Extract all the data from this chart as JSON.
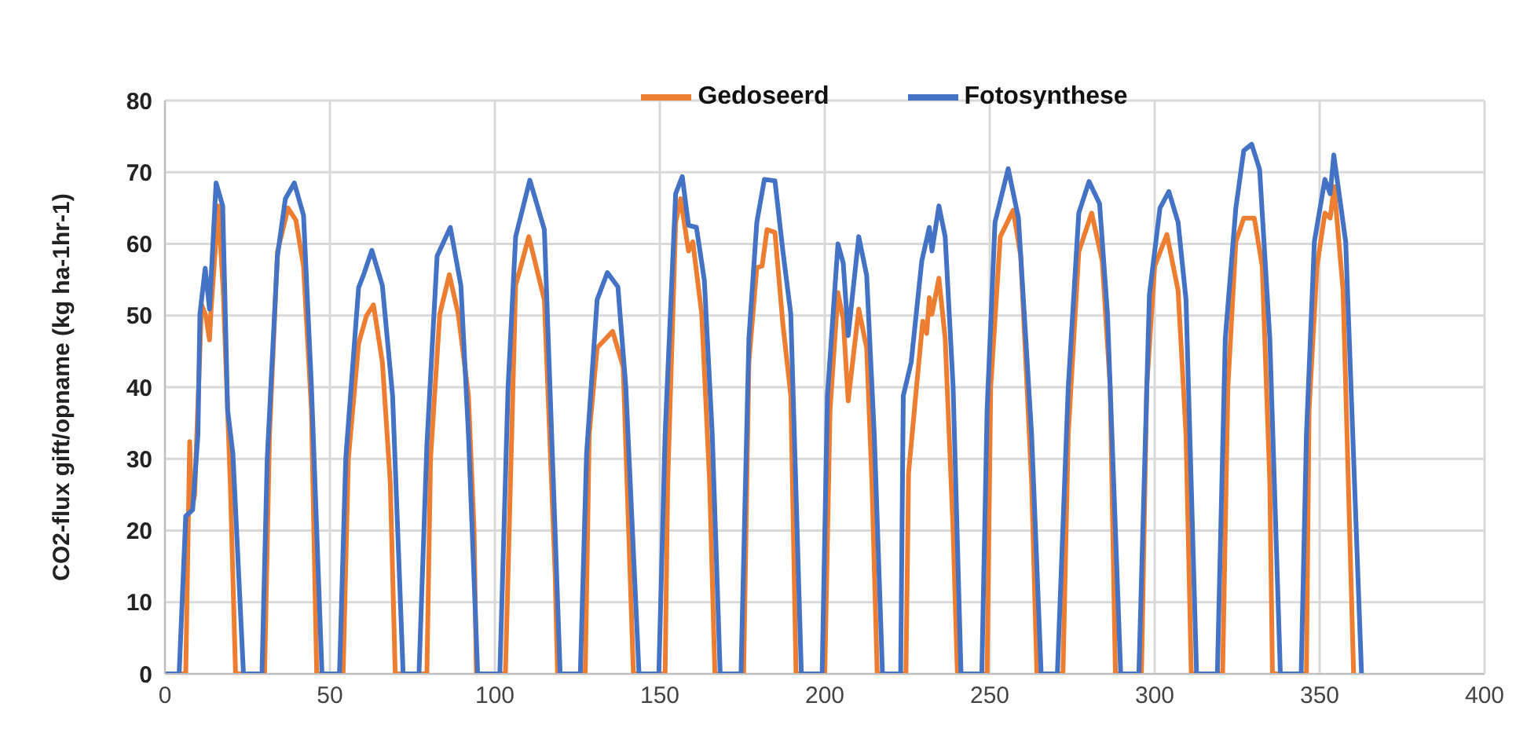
{
  "chart_data": {
    "type": "line",
    "ylabel": "CO2-flux gift/opname (kg ha-1hr-1)",
    "xlim": [
      0,
      400
    ],
    "xticks": [
      0,
      50,
      100,
      150,
      200,
      250,
      300,
      350,
      400
    ],
    "ylim": [
      0,
      80
    ],
    "yticks": [
      0,
      10,
      20,
      30,
      40,
      50,
      60,
      70,
      80
    ],
    "grid": true,
    "legend": "top",
    "marker": "none",
    "line_style": "solid",
    "series": [
      {
        "name": "Gedoseerd",
        "color": "#ed7d31",
        "x": [
          0,
          6.3,
          7.5,
          8.1,
          9,
          11.1,
          12.4,
          13.5,
          14,
          16.2,
          17.7,
          19.8,
          21.4,
          30.2,
          31.7,
          34.1,
          37.3,
          39.7,
          42,
          44.4,
          46,
          54,
          55.6,
          58.7,
          61.1,
          63.2,
          65.9,
          68.3,
          69.8,
          79.4,
          80.5,
          83.3,
          86.2,
          88.9,
          92,
          93.7,
          94.4,
          103.2,
          104.3,
          106.3,
          110.3,
          115,
          118.3,
          119,
          127.4,
          128.6,
          131,
          135.7,
          138.9,
          142,
          151.6,
          152.4,
          154.8,
          156.3,
          158.7,
          160,
          162.7,
          165.1,
          166.7,
          175.4,
          177,
          179.4,
          181,
          182.5,
          184.9,
          187.3,
          189.7,
          191.3,
          200,
          201.6,
          204,
          205.6,
          207.1,
          210.3,
          212.7,
          214.3,
          215.9,
          224.6,
          225.4,
          227.8,
          229.7,
          230.9,
          231.7,
          232.5,
          234.6,
          236.5,
          238.9,
          240.2,
          249.2,
          250.3,
          253.2,
          257.1,
          259.4,
          262.7,
          264.3,
          272.2,
          273.8,
          277,
          280.9,
          284.1,
          286.5,
          288.1,
          296,
          297.6,
          300,
          303.7,
          307.1,
          309.5,
          311.1,
          320.6,
          322.2,
          324.6,
          327,
          330.2,
          332.6,
          334.9,
          335.7,
          346,
          346.8,
          349.2,
          351.6,
          353.2,
          354.4,
          357.1,
          360.3
        ],
        "values": [
          0,
          0,
          32.4,
          22.9,
          25,
          51.5,
          50,
          46.6,
          51,
          65.3,
          53,
          26.7,
          0,
          0,
          33.4,
          58.9,
          65,
          63.3,
          56.9,
          36.8,
          0,
          0,
          30,
          46.1,
          50,
          51.5,
          43.5,
          26.7,
          0,
          0,
          30,
          50.2,
          55.7,
          50.2,
          38.8,
          20,
          0,
          0,
          19.3,
          54.2,
          61,
          52.2,
          13.5,
          0,
          0,
          33.4,
          45.5,
          47.8,
          42.8,
          0,
          0,
          26.7,
          63,
          66.3,
          59,
          60.3,
          50.2,
          26.7,
          0,
          0,
          43.5,
          56.7,
          56.9,
          62,
          61.6,
          48.8,
          38.8,
          0,
          0,
          36.8,
          53.2,
          49.5,
          38.1,
          50.9,
          45.5,
          26.7,
          0,
          0,
          28,
          40,
          49.2,
          47.5,
          52.5,
          50.2,
          55.2,
          46.8,
          20,
          0,
          0,
          40,
          61,
          64.7,
          58.3,
          26.7,
          0,
          0,
          33.4,
          58.9,
          64.3,
          57.6,
          40.1,
          0,
          0,
          40.1,
          56.9,
          61.3,
          53.5,
          33.4,
          0,
          0,
          40.1,
          60.3,
          63.6,
          63.6,
          56.9,
          26.7,
          0,
          0,
          36.8,
          56.9,
          64.3,
          63.6,
          68,
          53.5,
          0
        ]
      },
      {
        "name": "Fotosynthese",
        "color": "#4472c4",
        "x": [
          0,
          4.3,
          6.3,
          8.4,
          10,
          10.6,
          12.2,
          13.5,
          15.5,
          17.5,
          19,
          20.6,
          23.8,
          29.4,
          31,
          34.1,
          36.5,
          39.2,
          42,
          44.4,
          47.6,
          52.9,
          54.8,
          58.7,
          60.3,
          62.7,
          65.9,
          69,
          72.2,
          77,
          79.4,
          82.5,
          86.5,
          89.7,
          92,
          94.8,
          101.5,
          104,
          106.3,
          110.6,
          115,
          119.8,
          125.9,
          127.8,
          131,
          134.1,
          137.3,
          139.7,
          143.7,
          149.7,
          151.6,
          154.8,
          156.8,
          158.7,
          161.1,
          163.5,
          165.9,
          168.3,
          174.6,
          177,
          179.4,
          181.7,
          184.9,
          187.3,
          189.7,
          192.9,
          199.2,
          200.8,
          204,
          205.6,
          207.1,
          210.3,
          212.7,
          215,
          217.5,
          223,
          223.8,
          226.2,
          229.4,
          231.7,
          232.5,
          234.6,
          236.5,
          238.9,
          241.3,
          247.6,
          249.2,
          251.6,
          255.6,
          258.7,
          262.7,
          265.6,
          270.5,
          273.8,
          277,
          280.1,
          283.3,
          285.7,
          289.7,
          295.2,
          298.4,
          301.6,
          304.3,
          307.1,
          309.5,
          312.7,
          319,
          321.4,
          324.6,
          327,
          329.4,
          331.8,
          334.9,
          338.1,
          344.4,
          346,
          348.4,
          351.6,
          353.2,
          354.3,
          357.9,
          362.7
        ],
        "values": [
          0,
          0,
          22,
          22.9,
          33.4,
          50.2,
          56.6,
          50.9,
          68.5,
          65.3,
          36.8,
          30.7,
          0,
          0,
          30,
          58.3,
          66.3,
          68.5,
          64,
          40.1,
          0,
          0,
          30,
          53.9,
          55.8,
          59.1,
          54.2,
          38.8,
          0,
          0,
          32,
          58.3,
          62.3,
          54.2,
          33.4,
          0,
          0,
          40,
          61,
          68.9,
          62,
          0,
          0,
          30.7,
          52.2,
          56,
          54,
          40,
          0,
          0,
          33.4,
          67,
          69.4,
          62.6,
          62.3,
          54.9,
          33.4,
          0,
          0,
          46.8,
          63,
          69,
          68.8,
          59,
          50.2,
          0,
          0,
          38.8,
          60,
          57.3,
          47.2,
          61,
          55.6,
          33.4,
          0,
          0,
          38.8,
          43.5,
          57.6,
          62.3,
          59,
          65.3,
          61,
          40.1,
          0,
          0,
          36.8,
          63,
          70.5,
          63.6,
          33.4,
          0,
          0,
          40,
          64.3,
          68.7,
          65.6,
          50.2,
          0,
          0,
          52.9,
          65,
          67.3,
          63,
          52.2,
          0,
          0,
          46.8,
          65,
          73,
          73.9,
          70.4,
          46.8,
          0,
          0,
          33.4,
          60.3,
          69,
          67,
          72.4,
          60.3,
          0
        ]
      }
    ]
  }
}
